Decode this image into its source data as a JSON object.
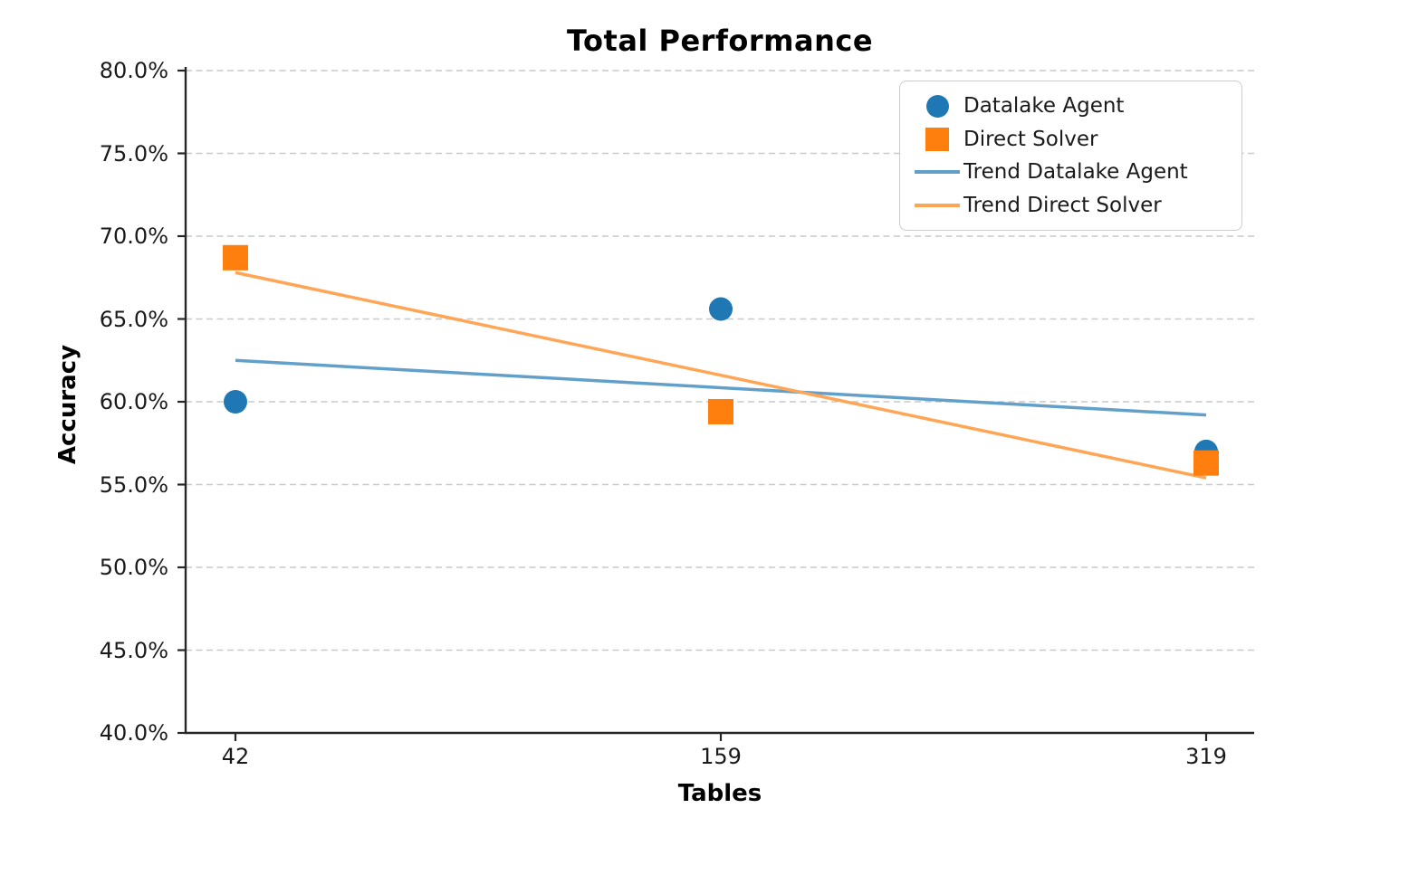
{
  "chart_data": {
    "type": "scatter",
    "title": "Total Performance",
    "xlabel": "Tables",
    "ylabel": "Accuracy",
    "x_tick_labels": [
      "42",
      "159",
      "319"
    ],
    "x_values": [
      42,
      159,
      319
    ],
    "x_spacing": "equal (categorical positions)",
    "y_ticks": [
      40,
      45,
      50,
      55,
      60,
      65,
      70,
      75,
      80
    ],
    "y_tick_labels": [
      "40.0%",
      "45.0%",
      "50.0%",
      "55.0%",
      "60.0%",
      "65.0%",
      "70.0%",
      "75.0%",
      "80.0%"
    ],
    "ylim": [
      40,
      80
    ],
    "grid": "horizontal dashed",
    "grid_color": "#c9c9c9",
    "axis_color": "#262626",
    "legend_position": "upper right",
    "series": [
      {
        "name": "Datalake Agent",
        "type": "scatter",
        "marker": "circle",
        "color": "#1f77b4",
        "values": [
          60.0,
          65.6,
          57.0
        ]
      },
      {
        "name": "Direct Solver",
        "type": "scatter",
        "marker": "square",
        "color": "#ff7f0e",
        "values": [
          68.7,
          59.4,
          56.3
        ]
      },
      {
        "name": "Trend Datalake Agent",
        "type": "line",
        "marker": "none",
        "color": "#62a0ca",
        "values": [
          62.5,
          60.85,
          59.2
        ]
      },
      {
        "name": "Trend Direct Solver",
        "type": "line",
        "marker": "none",
        "color": "#ffa556",
        "values": [
          67.8,
          61.6,
          55.4
        ]
      }
    ]
  }
}
